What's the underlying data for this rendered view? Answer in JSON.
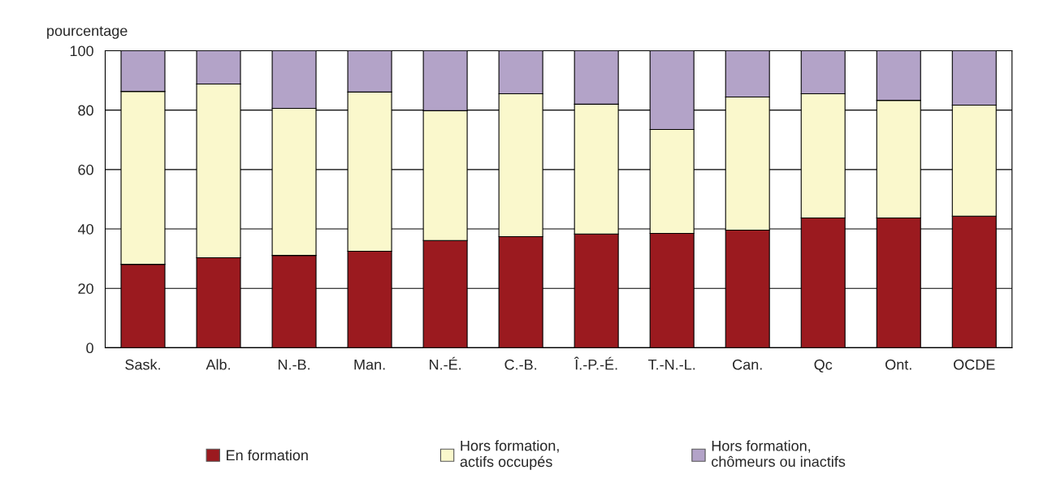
{
  "chart_data": {
    "type": "bar",
    "stacked": true,
    "ylabel": "pourcentage",
    "categories": [
      "Sask.",
      "Alb.",
      "N.-B.",
      "Man.",
      "N.-É.",
      "C.-B.",
      "Î.-P.-É.",
      "T.-N.-L.",
      "Can.",
      "Qc",
      "Ont.",
      "OCDE"
    ],
    "series": [
      {
        "name": "En formation",
        "color": "#9b1a1f",
        "values": [
          28.1,
          30.3,
          31.1,
          32.5,
          36.1,
          37.4,
          38.3,
          38.5,
          39.6,
          43.7,
          43.7,
          44.3
        ]
      },
      {
        "name": "Hors formation,\nactifs occupés",
        "color": "#faf8cc",
        "values": [
          58.2,
          58.5,
          49.5,
          53.6,
          43.7,
          48.1,
          43.7,
          35.0,
          44.8,
          41.8,
          39.6,
          37.4
        ]
      },
      {
        "name": "Hors formation,\nchômeurs ou inactifs",
        "color": "#b3a3c8",
        "values": [
          13.7,
          11.2,
          19.4,
          13.9,
          20.2,
          14.5,
          18.0,
          26.5,
          15.6,
          14.5,
          16.7,
          18.3
        ]
      }
    ],
    "ylim": [
      0,
      100
    ],
    "yticks": [
      0,
      20,
      40,
      60,
      80,
      100
    ],
    "grid": "y",
    "legend": "bottom"
  }
}
